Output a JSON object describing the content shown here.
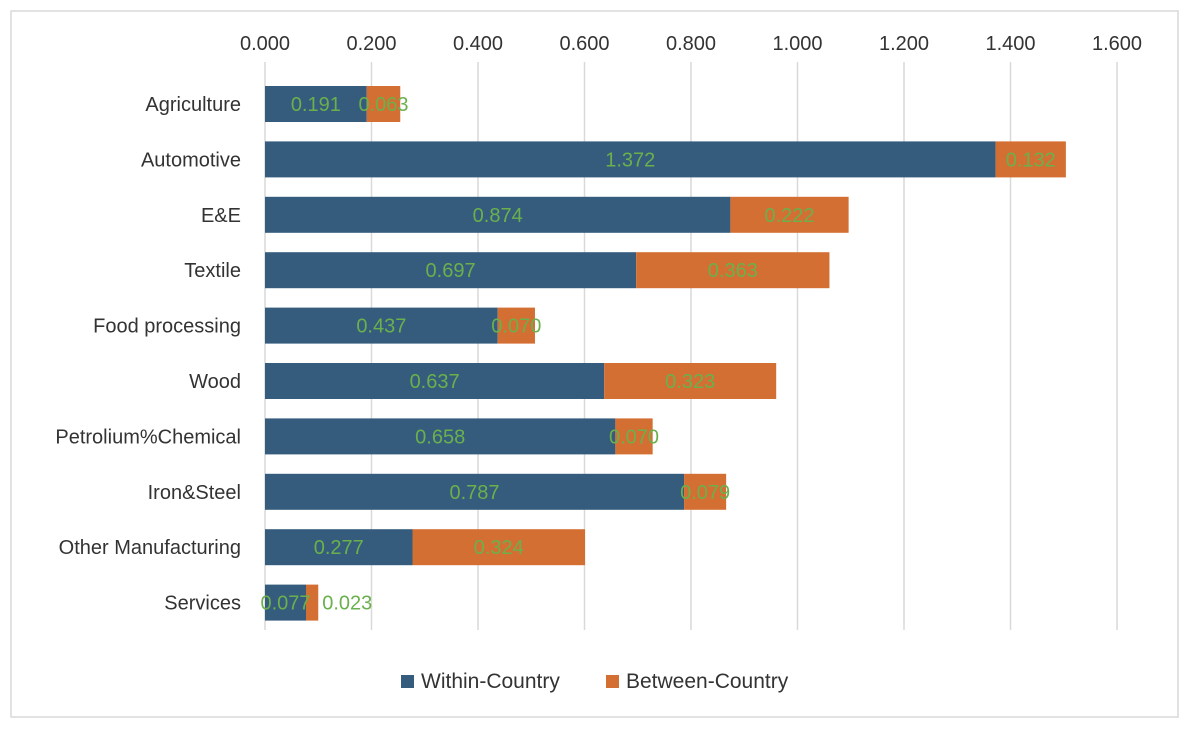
{
  "chart_data": {
    "type": "bar",
    "orientation": "horizontal",
    "stacked": true,
    "categories": [
      "Agriculture",
      "Automotive",
      "E&E",
      "Textile",
      "Food processing",
      "Wood",
      "Petrolium%Chemical",
      "Iron&Steel",
      "Other Manufacturing",
      "Services"
    ],
    "series": [
      {
        "name": "Within-Country",
        "color": "#355C7D",
        "values": [
          0.191,
          1.372,
          0.874,
          0.697,
          0.437,
          0.637,
          0.658,
          0.787,
          0.277,
          0.077
        ],
        "labels": [
          "0.191",
          "1.372",
          "0.874",
          "0.697",
          "0.437",
          "0.637",
          "0.658",
          "0.787",
          "0.277",
          "0.077"
        ]
      },
      {
        "name": "Between-Country",
        "color": "#D46F33",
        "values": [
          0.063,
          0.132,
          0.222,
          0.363,
          0.07,
          0.323,
          0.07,
          0.079,
          0.324,
          0.023
        ],
        "labels": [
          "0.063",
          "0.132",
          "0.222",
          "0.363",
          "0.070",
          "0.323",
          "0.070",
          "0.079",
          "0.324",
          "0.023"
        ]
      }
    ],
    "xlim": [
      0,
      1.6
    ],
    "xticks": [
      "0.000",
      "0.200",
      "0.400",
      "0.600",
      "0.800",
      "1.000",
      "1.200",
      "1.400",
      "1.600"
    ],
    "x_axis_position": "top",
    "grid": true,
    "legend_position": "bottom",
    "data_label_color": "#6AB04C"
  }
}
